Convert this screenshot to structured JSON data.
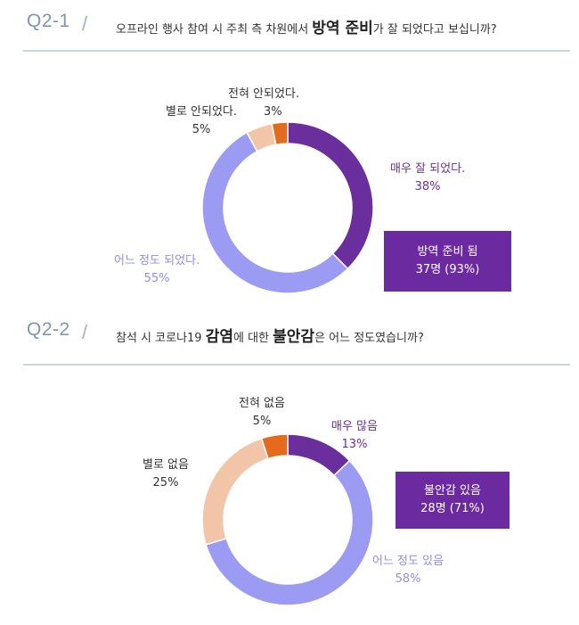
{
  "q1": {
    "number": "Q2-1",
    "slash": "/",
    "question_pre": "오프라인 행사 참여 시 주최 측 차원에서 ",
    "question_em": "방역 준비",
    "question_post": "가 잘 되었다고 보십니까?",
    "summary_line1": "방역 준비 됨",
    "summary_line2": "37명 (93%)"
  },
  "q2": {
    "number": "Q2-2",
    "slash": "/",
    "question_pre": "참석 시 코로나19 ",
    "question_em1": "감염",
    "question_mid": "에 대한 ",
    "question_em2": "불안감",
    "question_post": "은 어느 정도였습니까?",
    "summary_line1": "불안감 있음",
    "summary_line2": "28명 (71%)"
  },
  "chart_data": [
    {
      "type": "pie",
      "donut": true,
      "title": "오프라인 행사 참여 시 주최 측 차원에서 방역 준비가 잘 되었다고 보십니까?",
      "categories": [
        "매우 잘 되었다.",
        "어느 정도 되었다.",
        "별로 안되었다.",
        "전혀 안되었다."
      ],
      "values": [
        38,
        55,
        5,
        3
      ],
      "value_labels": [
        "38%",
        "55%",
        "5%",
        "3%"
      ],
      "colors": [
        "#6a2e9d",
        "#9b9bf4",
        "#f2c5a8",
        "#e46a1e"
      ],
      "summary": "방역 준비 됨 37명 (93%)"
    },
    {
      "type": "pie",
      "donut": true,
      "title": "참석 시 코로나19 감염에 대한 불안감은 어느 정도였습니까?",
      "categories": [
        "매우 많음",
        "어느 정도 있음",
        "별로 없음",
        "전혀 없음"
      ],
      "values": [
        13,
        58,
        25,
        5
      ],
      "value_labels": [
        "13%",
        "58%",
        "25%",
        "5%"
      ],
      "colors": [
        "#6a2e9d",
        "#9b9bf4",
        "#f2c5a8",
        "#e46a1e"
      ],
      "summary": "불안감 있음 28명 (71%)"
    }
  ]
}
